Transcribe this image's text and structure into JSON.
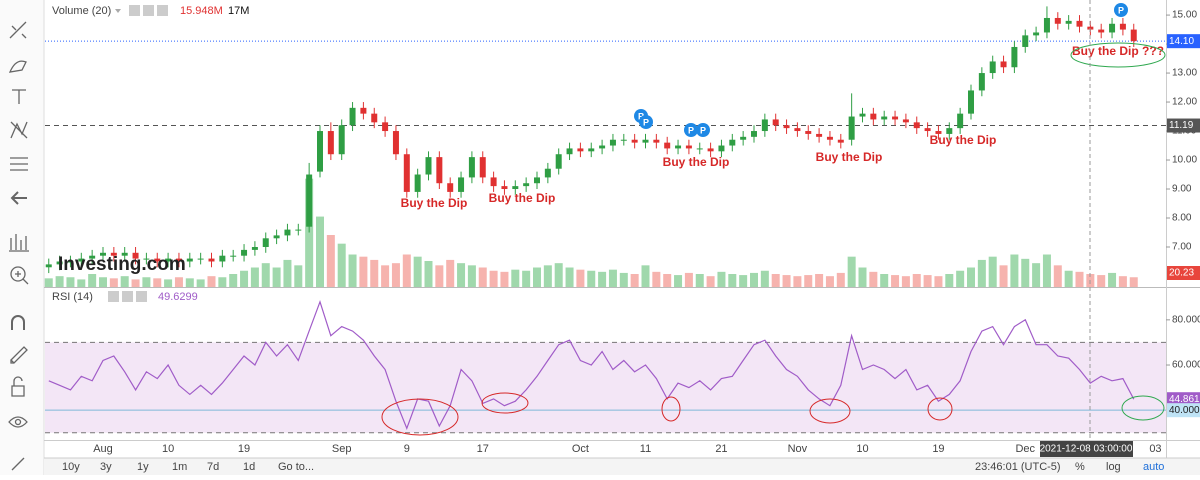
{
  "chart_data": [
    {
      "type": "candlestick",
      "categories": [
        null,
        null,
        null,
        null,
        null,
        "Aug",
        null,
        null,
        null,
        null,
        null,
        "10",
        null,
        null,
        null,
        null,
        null,
        null,
        "19",
        null,
        null,
        null,
        null,
        null,
        null,
        null,
        null,
        "Sep",
        null,
        null,
        null,
        null,
        null,
        "9",
        null,
        null,
        null,
        null,
        null,
        null,
        "17",
        null,
        null,
        null,
        null,
        null,
        null,
        null,
        null,
        "Oct",
        null,
        null,
        null,
        null,
        null,
        "11",
        null,
        null,
        null,
        null,
        null,
        null,
        "21",
        null,
        null,
        null,
        null,
        null,
        null,
        "Nov",
        null,
        null,
        null,
        null,
        null,
        "10",
        null,
        null,
        null,
        null,
        null,
        null,
        "19",
        null,
        null,
        null,
        null,
        null,
        null,
        null,
        "Dec",
        null,
        null,
        null,
        null,
        null,
        null,
        null,
        null,
        null,
        null,
        null,
        "03"
      ],
      "open": [
        6.3,
        6.4,
        6.5,
        6.5,
        6.6,
        6.7,
        6.8,
        6.7,
        6.8,
        6.6,
        6.6,
        6.5,
        6.6,
        6.5,
        6.6,
        6.6,
        6.5,
        6.7,
        6.7,
        6.9,
        7.0,
        7.3,
        7.4,
        7.6,
        7.7,
        9.6,
        11.0,
        10.2,
        11.2,
        11.8,
        11.6,
        11.3,
        11.0,
        10.2,
        8.9,
        9.5,
        10.1,
        9.2,
        8.9,
        9.4,
        10.1,
        9.4,
        9.1,
        9.0,
        9.1,
        9.2,
        9.4,
        9.7,
        10.2,
        10.4,
        10.3,
        10.4,
        10.5,
        10.7,
        10.7,
        10.6,
        10.7,
        10.6,
        10.4,
        10.5,
        10.4,
        10.4,
        10.3,
        10.5,
        10.7,
        10.8,
        11.0,
        11.4,
        11.2,
        11.1,
        11.0,
        10.9,
        10.8,
        10.7,
        10.7,
        11.5,
        11.6,
        11.4,
        11.5,
        11.4,
        11.3,
        11.1,
        11.0,
        10.9,
        11.1,
        11.6,
        12.4,
        13.0,
        13.4,
        13.2,
        13.9,
        14.3,
        14.4,
        14.9,
        14.7,
        14.8,
        14.6,
        14.5,
        14.4,
        14.7,
        14.5,
        null,
        null
      ],
      "high": [
        6.6,
        6.7,
        6.7,
        6.8,
        6.9,
        7.0,
        7.0,
        7.0,
        7.0,
        6.8,
        6.8,
        6.8,
        6.8,
        6.8,
        6.8,
        6.8,
        6.9,
        6.9,
        7.1,
        7.2,
        7.5,
        7.6,
        7.8,
        7.8,
        9.9,
        11.2,
        11.3,
        11.4,
        12.0,
        12.0,
        11.8,
        11.5,
        11.2,
        10.4,
        9.7,
        10.3,
        10.3,
        9.4,
        9.6,
        10.3,
        10.3,
        9.6,
        9.3,
        9.3,
        9.4,
        9.6,
        9.9,
        10.4,
        10.6,
        10.6,
        10.6,
        10.7,
        10.9,
        10.9,
        10.9,
        10.9,
        10.9,
        10.8,
        10.7,
        10.7,
        10.6,
        10.6,
        10.7,
        10.9,
        11.0,
        11.2,
        11.6,
        11.6,
        11.4,
        11.3,
        11.2,
        11.1,
        11.0,
        10.9,
        12.3,
        11.8,
        11.8,
        11.7,
        11.7,
        11.6,
        11.5,
        11.3,
        11.2,
        11.3,
        11.8,
        12.6,
        13.2,
        13.6,
        13.6,
        14.1,
        14.5,
        14.6,
        15.3,
        15.1,
        15.0,
        15.0,
        14.8,
        14.7,
        14.9,
        14.9,
        14.7,
        null,
        null
      ],
      "low": [
        6.1,
        6.2,
        6.3,
        6.3,
        6.4,
        6.5,
        6.5,
        6.5,
        6.4,
        6.4,
        6.3,
        6.3,
        6.3,
        6.3,
        6.4,
        6.3,
        6.3,
        6.5,
        6.5,
        6.7,
        6.8,
        7.1,
        7.2,
        7.4,
        7.5,
        9.4,
        10.0,
        10.0,
        11.0,
        11.4,
        11.1,
        10.8,
        10.0,
        8.7,
        8.7,
        9.3,
        9.0,
        8.7,
        8.7,
        9.2,
        9.2,
        8.9,
        8.8,
        8.8,
        8.9,
        9.0,
        9.2,
        9.5,
        10.0,
        10.1,
        10.1,
        10.2,
        10.3,
        10.5,
        10.4,
        10.4,
        10.4,
        10.2,
        10.2,
        10.2,
        10.2,
        10.1,
        10.1,
        10.3,
        10.5,
        10.6,
        10.8,
        11.0,
        10.9,
        10.8,
        10.7,
        10.6,
        10.5,
        10.4,
        10.5,
        11.3,
        11.2,
        11.2,
        11.2,
        11.1,
        10.9,
        10.8,
        10.7,
        10.7,
        10.9,
        11.4,
        12.2,
        12.8,
        13.0,
        13.0,
        13.7,
        14.1,
        14.2,
        14.5,
        14.5,
        14.4,
        14.3,
        14.2,
        14.2,
        14.3,
        13.9,
        null,
        null
      ],
      "close": [
        6.4,
        6.5,
        6.5,
        6.6,
        6.7,
        6.8,
        6.7,
        6.8,
        6.6,
        6.6,
        6.5,
        6.6,
        6.5,
        6.6,
        6.6,
        6.5,
        6.7,
        6.7,
        6.9,
        7.0,
        7.3,
        7.4,
        7.6,
        7.6,
        9.5,
        11.0,
        10.2,
        11.2,
        11.8,
        11.6,
        11.3,
        11.0,
        10.2,
        8.9,
        9.5,
        10.1,
        9.2,
        8.9,
        9.4,
        10.1,
        9.4,
        9.1,
        9.0,
        9.1,
        9.2,
        9.4,
        9.7,
        10.2,
        10.4,
        10.3,
        10.4,
        10.5,
        10.7,
        10.7,
        10.6,
        10.7,
        10.6,
        10.4,
        10.5,
        10.4,
        10.4,
        10.3,
        10.5,
        10.7,
        10.8,
        11.0,
        11.4,
        11.2,
        11.1,
        11.0,
        10.9,
        10.8,
        10.7,
        10.6,
        11.5,
        11.6,
        11.4,
        11.5,
        11.4,
        11.3,
        11.1,
        11.0,
        10.9,
        11.1,
        11.6,
        12.4,
        13.0,
        13.4,
        13.2,
        13.9,
        14.3,
        14.4,
        14.9,
        14.7,
        14.8,
        14.6,
        14.5,
        14.4,
        14.7,
        14.5,
        14.1,
        null,
        null
      ],
      "up_color": "#2f9e44",
      "down_color": "#e03131",
      "ylim": [
        5.62,
        15.52
      ],
      "yticks": [
        {
          "value": 7,
          "label": "7.00"
        },
        {
          "value": 8,
          "label": "8.00"
        },
        {
          "value": 9,
          "label": "9.00"
        },
        {
          "value": 10,
          "label": "10.00"
        },
        {
          "value": 11,
          "label": "11.00"
        },
        {
          "value": 12,
          "label": "12.00"
        },
        {
          "value": 13,
          "label": "13.00"
        },
        {
          "value": 14,
          "label": "14.00"
        },
        {
          "value": 15,
          "label": "15.00"
        }
      ],
      "price_lines": [
        {
          "value": 14.1,
          "label": "14.10",
          "color": "#2962ff",
          "style": "dotted"
        },
        {
          "value": 11.19,
          "color": "#555555",
          "style": "dashed"
        }
      ],
      "annotations": [
        "Buy the Dip",
        "Buy the Dip",
        "Buy the Dip",
        "Buy the Dip",
        "Buy the Dip",
        "Buy the Dip ???"
      ],
      "event_label": "P"
    },
    {
      "type": "bar",
      "title": "Volume (20)",
      "legend_values": [
        "15.948M",
        "17M"
      ],
      "axis_tag": "20.23",
      "values": [
        8,
        10,
        9,
        7,
        12,
        9,
        8,
        10,
        7,
        9,
        8,
        7,
        9,
        8,
        7,
        10,
        9,
        12,
        15,
        18,
        22,
        18,
        25,
        20,
        100,
        65,
        48,
        40,
        30,
        28,
        25,
        20,
        22,
        30,
        28,
        24,
        20,
        25,
        22,
        20,
        18,
        15,
        14,
        16,
        15,
        18,
        20,
        22,
        18,
        16,
        15,
        14,
        16,
        13,
        12,
        20,
        14,
        12,
        11,
        13,
        12,
        10,
        14,
        12,
        11,
        13,
        15,
        12,
        11,
        10,
        11,
        12,
        10,
        13,
        28,
        18,
        14,
        12,
        11,
        10,
        12,
        11,
        10,
        12,
        15,
        18,
        25,
        28,
        20,
        30,
        26,
        22,
        30,
        20,
        15,
        14,
        12,
        11,
        13,
        10,
        9,
        null,
        null
      ],
      "ylim": [
        0,
        120
      ],
      "up_color": "#8fd19e",
      "down_color": "#f4a6a0"
    },
    {
      "type": "line",
      "title": "RSI (14)",
      "legend_value": "49.6299",
      "color": "#a05cc8",
      "values": [
        53,
        51,
        49,
        55,
        53,
        62,
        64,
        57,
        49,
        57,
        54,
        60,
        51,
        47,
        51,
        47,
        52,
        58,
        64,
        60,
        70,
        64,
        69,
        62,
        75,
        88,
        73,
        77,
        75,
        71,
        64,
        58,
        44,
        32,
        45,
        44,
        33,
        42,
        58,
        53,
        43,
        45,
        42,
        44,
        49,
        55,
        62,
        69,
        71,
        62,
        60,
        66,
        58,
        62,
        57,
        60,
        54,
        45,
        52,
        50,
        53,
        49,
        54,
        55,
        62,
        69,
        71,
        64,
        58,
        55,
        49,
        45,
        42,
        51,
        73,
        58,
        60,
        58,
        54,
        58,
        49,
        51,
        44,
        47,
        53,
        66,
        75,
        77,
        69,
        77,
        80,
        69,
        69,
        64,
        63,
        58,
        52,
        55,
        53,
        54,
        44.861,
        null,
        null
      ],
      "ylim": [
        26.8,
        94.1
      ],
      "yticks": [
        {
          "value": 80,
          "label": "80.000"
        },
        {
          "value": 60,
          "label": "60.000"
        }
      ],
      "band": [
        30,
        70
      ],
      "reference_line": {
        "value": 40,
        "label": "40.000"
      }
    }
  ],
  "watermark": "Investing.com",
  "crosshair_label": "2021-12-08 03:00:00",
  "bottom_bar": {
    "ranges": [
      "10y",
      "3y",
      "1y",
      "1m",
      "7d",
      "1d"
    ],
    "goto": "Go to...",
    "clock": "23:46:01 (UTC-5)",
    "percent": "%",
    "log": "log",
    "auto": "auto"
  }
}
